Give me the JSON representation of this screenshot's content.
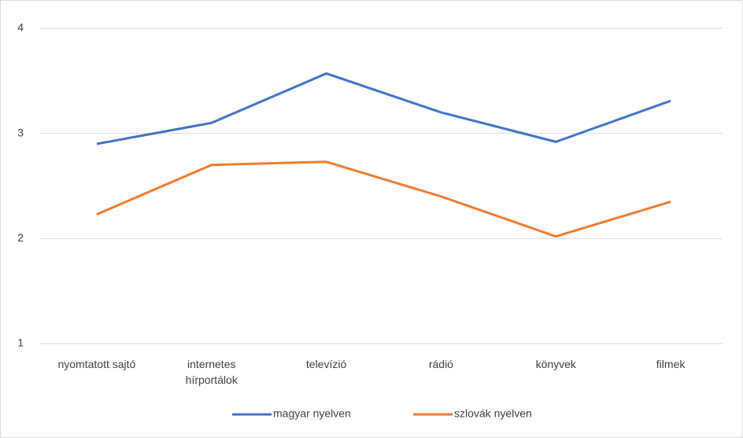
{
  "chart_data": {
    "type": "line",
    "categories": [
      "nyomtatott sajtó",
      "internetes hírportálok",
      "televízió",
      "rádió",
      "könyvek",
      "filmek"
    ],
    "series": [
      {
        "name": "magyar nyelven",
        "color": "#4472c4",
        "values": [
          2.9,
          3.1,
          3.57,
          3.2,
          2.92,
          3.31
        ]
      },
      {
        "name": "szlovák nyelven",
        "color": "#ed7d31",
        "values": [
          2.23,
          2.7,
          2.73,
          2.4,
          2.02,
          2.35
        ]
      }
    ],
    "ylim": [
      1,
      4
    ],
    "yticks": [
      1,
      2,
      3,
      4
    ],
    "grid": true,
    "legend": "bottom"
  }
}
